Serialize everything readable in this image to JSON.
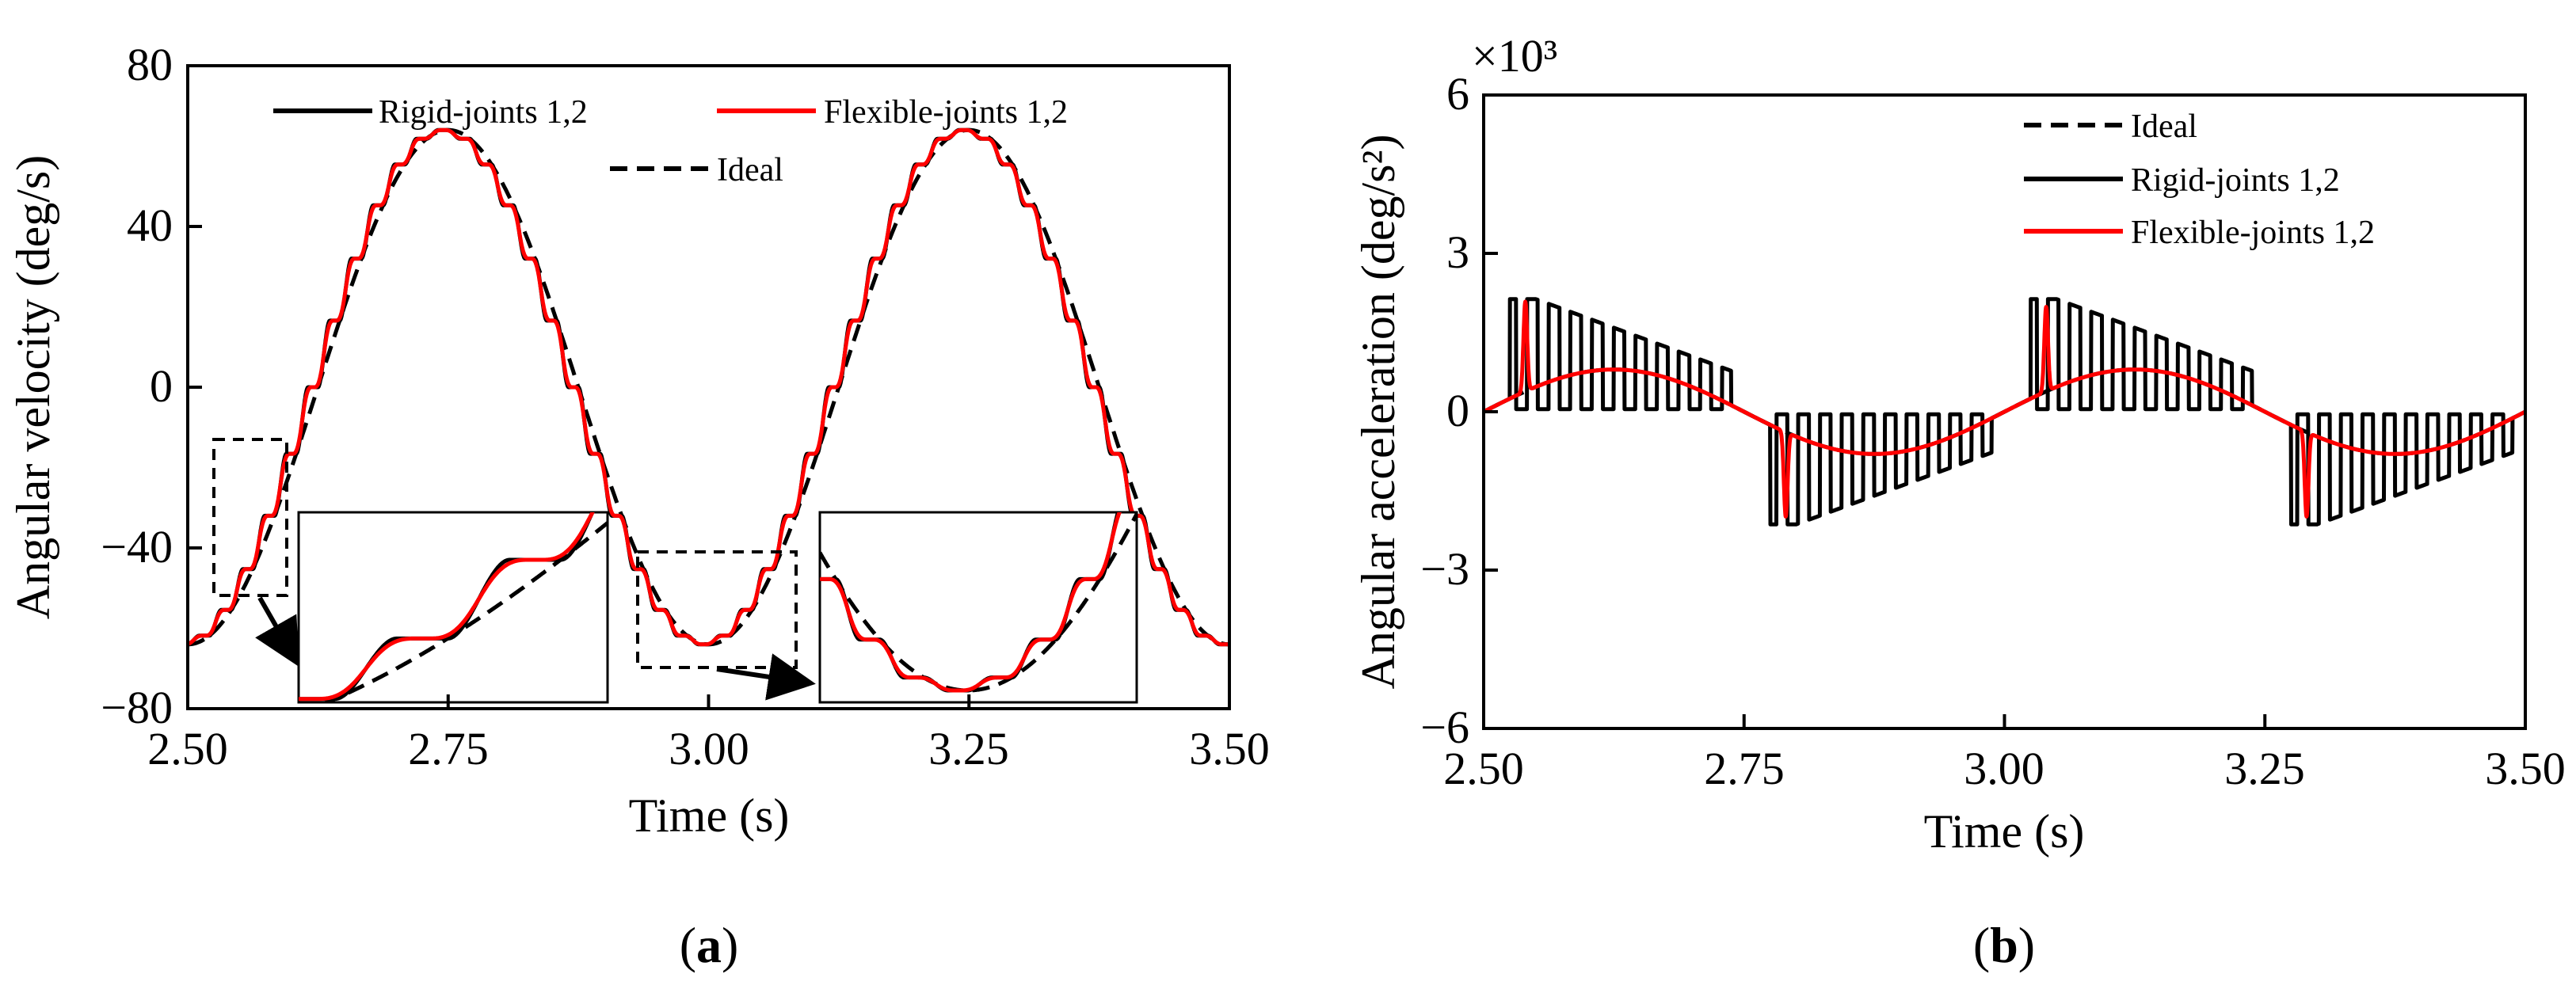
{
  "chart_data": [
    {
      "type": "line",
      "panel_label": "a",
      "xlabel": "Time (s)",
      "ylabel": "Angular velocity (deg/s)",
      "xlim": [
        2.5,
        3.5
      ],
      "ylim": [
        -80,
        80
      ],
      "xticks": [
        2.5,
        2.75,
        3.0,
        3.25,
        3.5
      ],
      "xtick_labels": [
        "2.50",
        "2.75",
        "3.00",
        "3.25",
        "3.50"
      ],
      "yticks": [
        -80,
        -40,
        0,
        40,
        80
      ],
      "ytick_labels": [
        "−80",
        "−40",
        "0",
        "40",
        "80"
      ],
      "legend": [
        "Rigid-joints 1,2",
        "Flexible-joints 1,2",
        "Ideal"
      ],
      "series": [
        {
          "name": "Ideal",
          "style": "dashed",
          "color": "#000000",
          "model": "sinusoid",
          "amplitude": 64,
          "period": 0.5,
          "peak_at": 2.75
        },
        {
          "name": "Rigid-joints 1,2",
          "style": "solid",
          "color": "#000000",
          "model": "sinusoid with 12 plateau steps per half period",
          "amplitude": 64,
          "period": 0.5,
          "peak_at": 2.75
        },
        {
          "name": "Flexible-joints 1,2",
          "style": "solid",
          "color": "#ff0000",
          "model": "sinusoid with smoothed plateau steps",
          "amplitude": 64,
          "period": 0.5,
          "peak_at": 2.75
        }
      ],
      "annotations": [
        "zoom box 1 near t=2.55, v≈-40",
        "zoom box 2 near t=3.0, v≈-64"
      ]
    },
    {
      "type": "line",
      "panel_label": "b",
      "xlabel": "Time (s)",
      "ylabel": "Angular acceleration (deg/s²)",
      "multiplier": "×10³",
      "xlim": [
        2.5,
        3.5
      ],
      "ylim": [
        -6,
        6
      ],
      "xticks": [
        2.5,
        2.75,
        3.0,
        3.25,
        3.5
      ],
      "xtick_labels": [
        "2.50",
        "2.75",
        "3.00",
        "3.25",
        "3.50"
      ],
      "yticks": [
        -6,
        -3,
        0,
        3,
        6
      ],
      "ytick_labels": [
        "−6",
        "−3",
        "0",
        "3",
        "6"
      ],
      "legend": [
        "Ideal",
        "Rigid-joints 1,2",
        "Flexible-joints 1,2"
      ],
      "series": [
        {
          "name": "Ideal",
          "style": "dashed",
          "color": "#000000",
          "model": "sinusoid",
          "amplitude": 0.8,
          "period": 0.5,
          "peak_at": 2.625
        },
        {
          "name": "Rigid-joints 1,2",
          "style": "solid",
          "color": "#000000",
          "model": "bursts of pulses, ~12 per half period, peak ≈2.2, trough ≈-2.4"
        },
        {
          "name": "Flexible-joints 1,2",
          "style": "solid",
          "color": "#ff0000",
          "model": "smooth sinusoid amplitude 0.8 with spikes ±1.7 at half-period transitions"
        }
      ]
    }
  ]
}
